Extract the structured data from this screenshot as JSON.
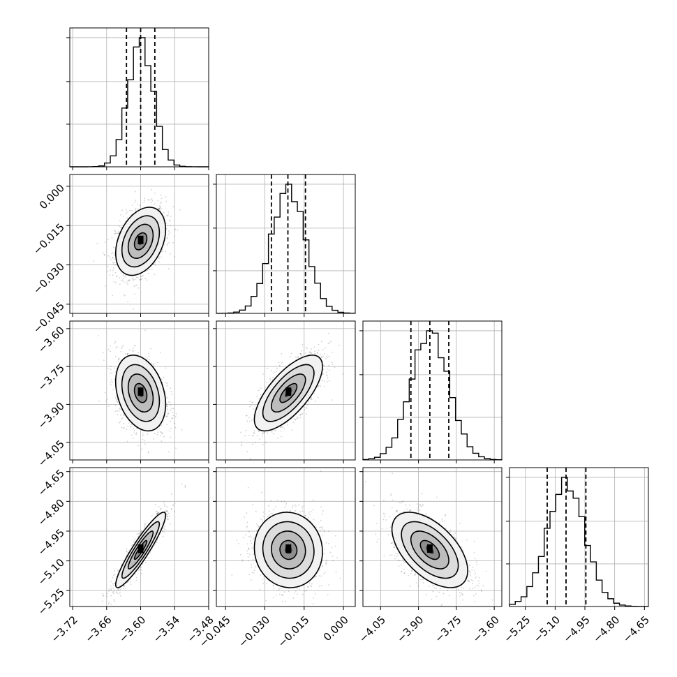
{
  "chart_data": {
    "type": "corner",
    "grid": true,
    "parameters": [
      {
        "xticks": [
          "−3.72",
          "−3.66",
          "−3.60",
          "−3.54",
          "−3.48"
        ],
        "xtick_values": [
          -3.72,
          -3.66,
          -3.6,
          -3.54,
          -3.48
        ],
        "range": [
          -3.725,
          -3.48
        ],
        "quantiles": [
          -3.625,
          -3.6,
          -3.575
        ],
        "mean": -3.6,
        "std": 0.022,
        "yticks": [],
        "ytick_values": []
      },
      {
        "xticks": [
          "−0.045",
          "−0.030",
          "−0.015",
          "0.000"
        ],
        "xtick_values": [
          -0.045,
          -0.03,
          -0.015,
          0.0
        ],
        "range": [
          -0.0485,
          0.0045
        ],
        "quantiles": [
          -0.0275,
          -0.0212,
          -0.0145
        ],
        "mean": -0.021,
        "std": 0.0065,
        "yticks": [
          "0.000",
          "−0.015",
          "−0.030",
          "−0.045"
        ],
        "ytick_values": [
          0.0,
          -0.015,
          -0.03,
          -0.045
        ]
      },
      {
        "xticks": [
          "−4.05",
          "−3.90",
          "−3.75",
          "−3.60"
        ],
        "xtick_values": [
          -4.05,
          -3.9,
          -3.75,
          -3.6
        ],
        "range": [
          -4.12,
          -3.57
        ],
        "quantiles": [
          -3.93,
          -3.855,
          -3.78
        ],
        "mean": -3.855,
        "std": 0.075,
        "yticks": [
          "−3.60",
          "−3.75",
          "−3.90",
          "−4.05"
        ],
        "ytick_values": [
          -3.6,
          -3.75,
          -3.9,
          -4.05
        ]
      },
      {
        "xticks": [
          "−5.25",
          "−5.10",
          "−4.95",
          "−4.80",
          "−4.65"
        ],
        "xtick_values": [
          -5.25,
          -5.1,
          -4.95,
          -4.8,
          -4.65
        ],
        "range": [
          -5.33,
          -4.63
        ],
        "quantiles": [
          -5.14,
          -5.045,
          -4.945
        ],
        "mean": -5.045,
        "std": 0.095,
        "yticks": [
          "−4.65",
          "−4.80",
          "−4.95",
          "−5.10",
          "−5.25"
        ],
        "ytick_values": [
          -4.65,
          -4.8,
          -4.95,
          -5.1,
          -5.25
        ]
      }
    ],
    "correlations": [
      [
        1.0,
        0.35,
        -0.3,
        0.92
      ],
      [
        0.35,
        1.0,
        0.7,
        -0.05
      ],
      [
        -0.3,
        0.7,
        1.0,
        -0.55
      ],
      [
        0.92,
        -0.05,
        -0.55,
        1.0
      ]
    ],
    "histogram_bins": 24,
    "contour_levels_sigma": [
      0.5,
      1.0,
      1.5,
      2.0
    ]
  }
}
